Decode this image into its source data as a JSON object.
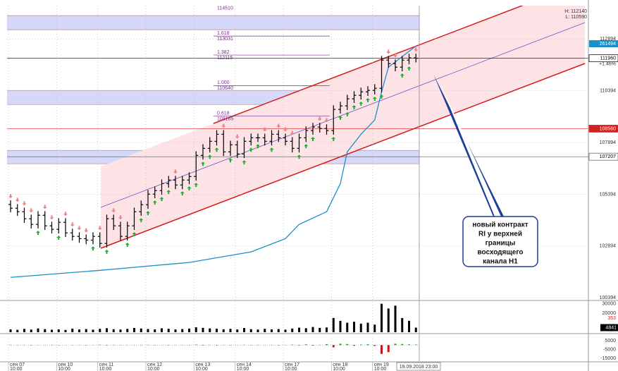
{
  "chart_data": {
    "type": "ohlc",
    "ylim": [
      100300,
      114500
    ],
    "yticks": [
      100394,
      102894,
      105394,
      107894,
      110394,
      112894
    ],
    "grid": true,
    "open": [
      104900,
      104720,
      104550,
      104210,
      103940,
      104380,
      103870,
      103700,
      104040,
      103530,
      103360,
      103250,
      103180,
      103360,
      103020,
      104210,
      103870,
      103360,
      103870,
      104550,
      104890,
      105400,
      105570,
      105910,
      106080,
      105840,
      106080,
      106250,
      107270,
      107610,
      107950,
      108290,
      107440,
      107780,
      107340,
      107950,
      108120,
      108120,
      107950,
      108290,
      108120,
      107950,
      107610,
      108120,
      108470,
      108640,
      108570,
      108470,
      109490,
      109660,
      110000,
      110170,
      110340,
      110410,
      110510,
      111870,
      111700,
      111530,
      111870,
      111980
    ],
    "high": [
      105100,
      104920,
      104750,
      104410,
      104580,
      104580,
      104070,
      104240,
      104240,
      103730,
      103560,
      103450,
      103560,
      103560,
      104410,
      104410,
      104070,
      104070,
      104750,
      105090,
      105600,
      105770,
      106110,
      106280,
      106280,
      106280,
      106450,
      107470,
      107810,
      108150,
      108490,
      108490,
      107980,
      107980,
      108150,
      108320,
      108320,
      108320,
      108490,
      108490,
      108320,
      108150,
      108320,
      108670,
      108840,
      108840,
      108770,
      109690,
      109860,
      110200,
      110370,
      110540,
      110610,
      110710,
      112070,
      112070,
      111900,
      112070,
      112180,
      112180
    ],
    "low": [
      104520,
      104350,
      104010,
      103740,
      103740,
      103670,
      103500,
      103500,
      103330,
      103160,
      103050,
      102980,
      102980,
      102820,
      102820,
      103670,
      103160,
      103160,
      103670,
      104350,
      104690,
      105200,
      105370,
      105710,
      105640,
      105640,
      105880,
      106050,
      107070,
      107410,
      107750,
      107240,
      107240,
      107140,
      107140,
      107750,
      107920,
      107750,
      107750,
      107920,
      107750,
      107410,
      107410,
      107920,
      108270,
      108370,
      108270,
      108270,
      109290,
      109460,
      109800,
      109970,
      110140,
      110210,
      110310,
      111500,
      111330,
      111330,
      111670,
      111760
    ],
    "close": [
      104720,
      104550,
      104210,
      103940,
      104380,
      103870,
      103700,
      104040,
      103530,
      103360,
      103250,
      103180,
      103360,
      103020,
      104210,
      103870,
      103360,
      103870,
      104550,
      104890,
      105400,
      105570,
      105910,
      106080,
      105840,
      106080,
      106250,
      107270,
      107610,
      107950,
      108290,
      107440,
      107780,
      107340,
      107950,
      108120,
      108120,
      107950,
      108290,
      108120,
      107950,
      107610,
      108120,
      108470,
      108640,
      108570,
      108470,
      109490,
      109660,
      110000,
      110170,
      110340,
      110410,
      110510,
      111870,
      111700,
      111530,
      111870,
      111980,
      111960
    ],
    "series": [
      {
        "color": "#1a8fc8",
        "x": [
          0,
          13,
          26,
          35,
          40,
          42,
          46,
          48,
          49,
          51,
          53,
          54,
          55,
          57,
          59
        ],
        "values": [
          101380,
          101720,
          102100,
          102610,
          103250,
          103940,
          104550,
          105910,
          107440,
          108290,
          108980,
          110340,
          111530,
          112040,
          112550
        ]
      }
    ],
    "xticks": [
      {
        "value": 0,
        "label": "сен 07"
      },
      {
        "value": 7,
        "label": "сен 10"
      },
      {
        "value": 13,
        "label": "сен 11"
      },
      {
        "value": 20,
        "label": "сен 12"
      },
      {
        "value": 27,
        "label": "сен 13"
      },
      {
        "value": 33,
        "label": "сен 14"
      },
      {
        "value": 40,
        "label": "сен 17"
      },
      {
        "value": 47,
        "label": "сен 18"
      },
      {
        "value": 53,
        "label": "сен 19"
      }
    ],
    "xtick_time": "10:00",
    "cursor_label": "19.09.2018 23:00",
    "high_label": "H: 112140",
    "low_label": "L: 110590",
    "change_label": "+1.46%",
    "indicator_label": 261494,
    "price_labels": [
      {
        "value": 111960,
        "color": "#000000"
      },
      {
        "value": 108560,
        "color": "#d42020"
      },
      {
        "value": 107207,
        "color": "#555555"
      }
    ],
    "fib_top": 114510,
    "fib_levels": [
      {
        "ratio": "1.618",
        "price": 113031
      },
      {
        "ratio": "1.382",
        "price": 112115
      },
      {
        "ratio": "1.000",
        "price": 110640
      },
      {
        "ratio": "0.618",
        "price": 109165
      }
    ],
    "zones": [
      [
        114018,
        113337
      ],
      [
        110408,
        109727
      ],
      [
        107513,
        106866
      ]
    ],
    "annotation": [
      "новый контракт",
      "RI у верхней",
      "границы",
      "восходящего",
      "канала Н1"
    ],
    "volume": {
      "type": "bar",
      "ylim": [
        0,
        32000
      ],
      "yticks": [
        20000,
        30000
      ],
      "last_label": 4841,
      "marker_label": 353,
      "values": [
        3000,
        2500,
        3500,
        2800,
        4000,
        3200,
        2600,
        3000,
        2400,
        3800,
        2900,
        3300,
        2700,
        3600,
        4200,
        3100,
        2800,
        3500,
        4500,
        3900,
        3400,
        3000,
        4100,
        3600,
        2900,
        3300,
        3800,
        5200,
        4600,
        4000,
        3700,
        3100,
        3500,
        2900,
        4400,
        3200,
        2800,
        3600,
        3000,
        3300,
        2700,
        3900,
        4800,
        4200,
        5500,
        4600,
        5000,
        15000,
        12000,
        10000,
        11000,
        9000,
        10000,
        8000,
        30000,
        25000,
        28000,
        15000,
        12000,
        4841
      ]
    },
    "indicator": {
      "type": "bar",
      "ylim": [
        -18200,
        11400
      ],
      "yticks": [
        5000,
        -5000,
        -15000
      ],
      "values": [
        300,
        -200,
        250,
        -300,
        200,
        -150,
        300,
        -250,
        150,
        -200,
        250,
        -300,
        200,
        400,
        -350,
        300,
        -200,
        250,
        -150,
        300,
        350,
        -250,
        200,
        -300,
        250,
        300,
        -200,
        500,
        -400,
        300,
        -350,
        250,
        -300,
        200,
        350,
        -250,
        300,
        -200,
        250,
        -300,
        200,
        500,
        -400,
        800,
        -600,
        300,
        1000,
        -2500,
        1500,
        1200,
        -800,
        600,
        900,
        -1000,
        -10000,
        -8000,
        1500,
        1200,
        800,
        600
      ]
    }
  }
}
